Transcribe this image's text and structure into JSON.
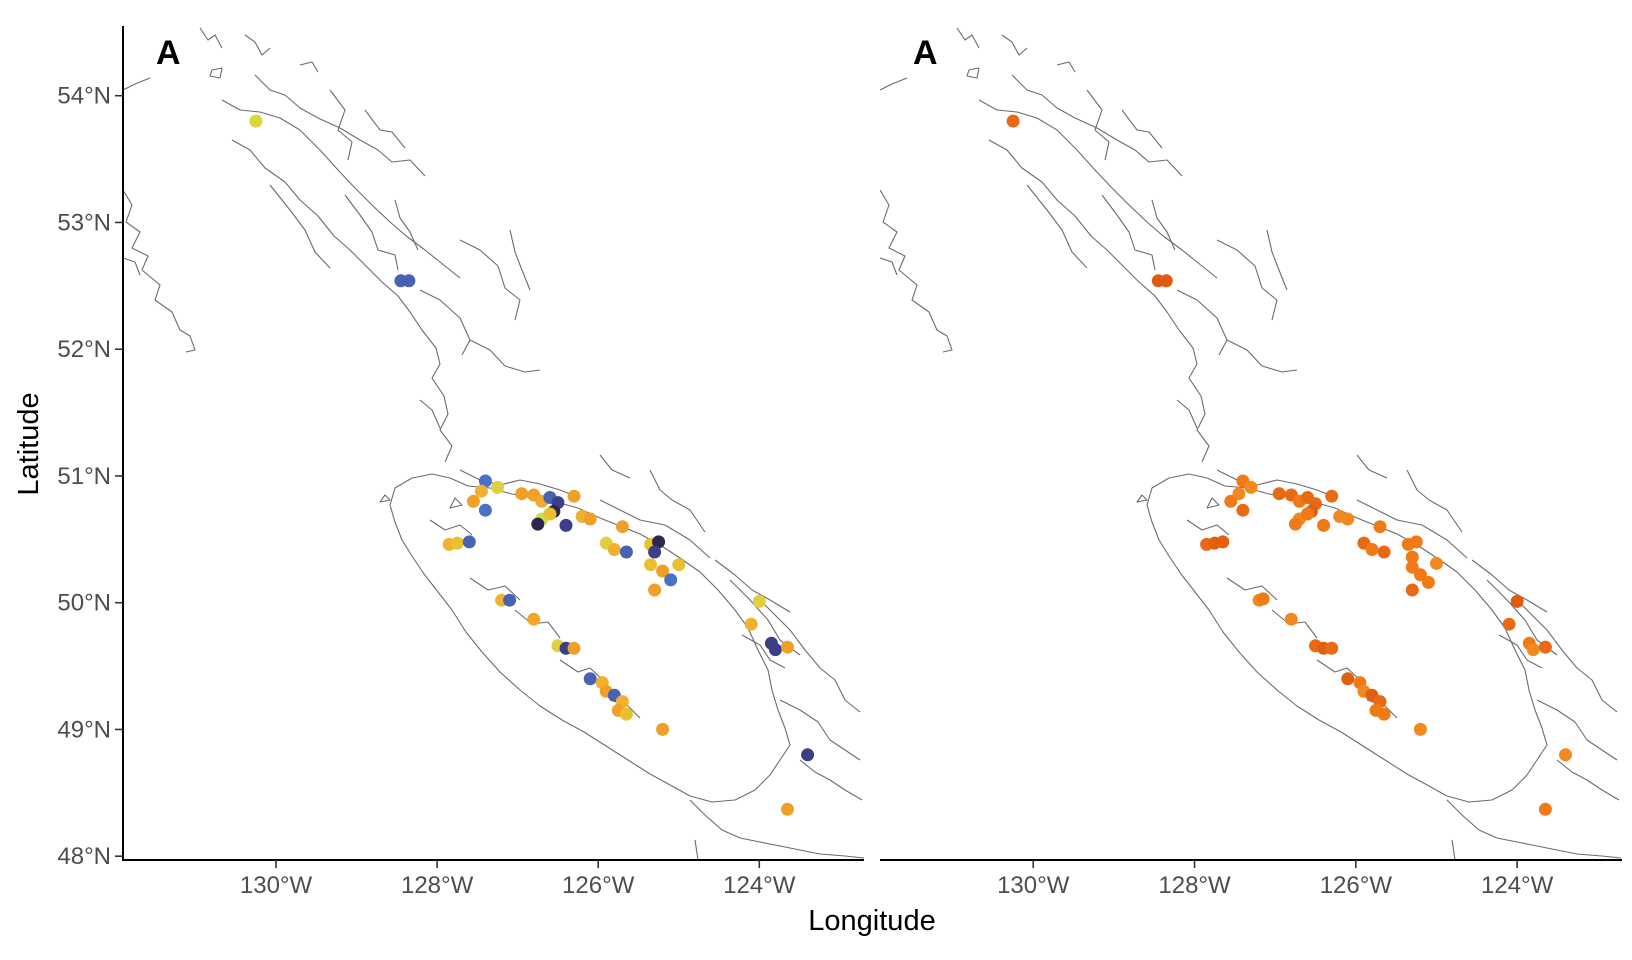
{
  "axes": {
    "xlabel": "Longitude",
    "ylabel": "Latitude",
    "x_ticks": [
      "130°W",
      "128°W",
      "126°W",
      "124°W"
    ],
    "y_ticks": [
      "54°N",
      "53°N",
      "52°N",
      "51°N",
      "50°N",
      "49°N",
      "48°N"
    ]
  },
  "chart_data": [
    {
      "type": "scatter",
      "panel_label": "A",
      "xlim": [
        -131.9,
        -122.7
      ],
      "ylim": [
        47.97,
        54.55
      ],
      "x_ticks": [
        -130,
        -128,
        -126,
        -124
      ],
      "y_ticks": [
        54,
        53,
        52,
        51,
        50,
        49,
        48
      ],
      "points": [
        {
          "lon": -130.25,
          "lat": 53.8,
          "color": "#d8d83a"
        },
        {
          "lon": -128.45,
          "lat": 52.54,
          "color": "#4a63b0"
        },
        {
          "lon": -128.35,
          "lat": 52.54,
          "color": "#4a63b0"
        },
        {
          "lon": -127.4,
          "lat": 50.96,
          "color": "#4a72c4"
        },
        {
          "lon": -127.25,
          "lat": 50.91,
          "color": "#e0d040"
        },
        {
          "lon": -127.45,
          "lat": 50.88,
          "color": "#f0b030"
        },
        {
          "lon": -127.55,
          "lat": 50.8,
          "color": "#f0a028"
        },
        {
          "lon": -127.4,
          "lat": 50.73,
          "color": "#4a72c4"
        },
        {
          "lon": -126.95,
          "lat": 50.86,
          "color": "#f0a028"
        },
        {
          "lon": -126.8,
          "lat": 50.85,
          "color": "#f0a028"
        },
        {
          "lon": -126.7,
          "lat": 50.8,
          "color": "#f0a830"
        },
        {
          "lon": -126.6,
          "lat": 50.83,
          "color": "#4a63b0"
        },
        {
          "lon": -126.5,
          "lat": 50.79,
          "color": "#3a3f88"
        },
        {
          "lon": -126.55,
          "lat": 50.72,
          "color": "#2a2850"
        },
        {
          "lon": -126.7,
          "lat": 50.66,
          "color": "#c8e040"
        },
        {
          "lon": -126.75,
          "lat": 50.62,
          "color": "#2a2850"
        },
        {
          "lon": -126.6,
          "lat": 50.7,
          "color": "#e8c030"
        },
        {
          "lon": -126.3,
          "lat": 50.84,
          "color": "#f0a028"
        },
        {
          "lon": -126.2,
          "lat": 50.68,
          "color": "#f0b030"
        },
        {
          "lon": -126.4,
          "lat": 50.61,
          "color": "#3a3f88"
        },
        {
          "lon": -126.1,
          "lat": 50.66,
          "color": "#f0a028"
        },
        {
          "lon": -127.85,
          "lat": 50.46,
          "color": "#f0b030"
        },
        {
          "lon": -127.75,
          "lat": 50.47,
          "color": "#e8c030"
        },
        {
          "lon": -127.6,
          "lat": 50.48,
          "color": "#4a63b0"
        },
        {
          "lon": -125.7,
          "lat": 50.6,
          "color": "#f0a028"
        },
        {
          "lon": -125.9,
          "lat": 50.47,
          "color": "#e0d040"
        },
        {
          "lon": -125.8,
          "lat": 50.42,
          "color": "#f0b030"
        },
        {
          "lon": -125.65,
          "lat": 50.4,
          "color": "#4a63b0"
        },
        {
          "lon": -125.35,
          "lat": 50.46,
          "color": "#e8c030"
        },
        {
          "lon": -125.25,
          "lat": 50.48,
          "color": "#2a2850"
        },
        {
          "lon": -125.3,
          "lat": 50.4,
          "color": "#3a3f88"
        },
        {
          "lon": -125.35,
          "lat": 50.3,
          "color": "#e8c030"
        },
        {
          "lon": -125.2,
          "lat": 50.25,
          "color": "#f0a028"
        },
        {
          "lon": -125.0,
          "lat": 50.3,
          "color": "#e8c030"
        },
        {
          "lon": -125.1,
          "lat": 50.18,
          "color": "#4a72c4"
        },
        {
          "lon": -125.3,
          "lat": 50.1,
          "color": "#f0a028"
        },
        {
          "lon": -127.2,
          "lat": 50.02,
          "color": "#f0b030"
        },
        {
          "lon": -127.1,
          "lat": 50.02,
          "color": "#4a63b0"
        },
        {
          "lon": -126.8,
          "lat": 49.87,
          "color": "#f0a828"
        },
        {
          "lon": -126.5,
          "lat": 49.66,
          "color": "#e0d040"
        },
        {
          "lon": -126.4,
          "lat": 49.64,
          "color": "#3a3f88"
        },
        {
          "lon": -126.3,
          "lat": 49.64,
          "color": "#f0a028"
        },
        {
          "lon": -126.1,
          "lat": 49.4,
          "color": "#4a63b0"
        },
        {
          "lon": -125.95,
          "lat": 49.37,
          "color": "#f0b030"
        },
        {
          "lon": -125.9,
          "lat": 49.3,
          "color": "#f0a028"
        },
        {
          "lon": -125.8,
          "lat": 49.27,
          "color": "#4a63b0"
        },
        {
          "lon": -125.7,
          "lat": 49.22,
          "color": "#f0b030"
        },
        {
          "lon": -125.75,
          "lat": 49.15,
          "color": "#f0a028"
        },
        {
          "lon": -125.65,
          "lat": 49.12,
          "color": "#e8c030"
        },
        {
          "lon": -125.2,
          "lat": 49.0,
          "color": "#f0a028"
        },
        {
          "lon": -124.0,
          "lat": 50.01,
          "color": "#e0d040"
        },
        {
          "lon": -124.1,
          "lat": 49.83,
          "color": "#f0b030"
        },
        {
          "lon": -123.85,
          "lat": 49.68,
          "color": "#3a3f88"
        },
        {
          "lon": -123.8,
          "lat": 49.63,
          "color": "#3a3f88"
        },
        {
          "lon": -123.65,
          "lat": 49.65,
          "color": "#f0a028"
        },
        {
          "lon": -123.4,
          "lat": 48.8,
          "color": "#3a3f88"
        },
        {
          "lon": -123.65,
          "lat": 48.37,
          "color": "#f0a028"
        }
      ]
    },
    {
      "type": "scatter",
      "panel_label": "A",
      "xlim": [
        -131.9,
        -122.7
      ],
      "ylim": [
        47.97,
        54.55
      ],
      "x_ticks": [
        -130,
        -128,
        -126,
        -124
      ],
      "y_ticks": [
        54,
        53,
        52,
        51,
        50,
        49,
        48
      ],
      "points": [
        {
          "lon": -130.25,
          "lat": 53.8,
          "color": "#e86a14"
        },
        {
          "lon": -128.45,
          "lat": 52.54,
          "color": "#e05a10"
        },
        {
          "lon": -128.35,
          "lat": 52.54,
          "color": "#e05a10"
        },
        {
          "lon": -127.4,
          "lat": 50.96,
          "color": "#f07a18"
        },
        {
          "lon": -127.3,
          "lat": 50.91,
          "color": "#f08a20"
        },
        {
          "lon": -127.45,
          "lat": 50.86,
          "color": "#f08a20"
        },
        {
          "lon": -127.55,
          "lat": 50.8,
          "color": "#f07a18"
        },
        {
          "lon": -127.4,
          "lat": 50.73,
          "color": "#e86a14"
        },
        {
          "lon": -126.95,
          "lat": 50.86,
          "color": "#e86a14"
        },
        {
          "lon": -126.8,
          "lat": 50.85,
          "color": "#e86a14"
        },
        {
          "lon": -126.7,
          "lat": 50.8,
          "color": "#f07a18"
        },
        {
          "lon": -126.6,
          "lat": 50.83,
          "color": "#e86a14"
        },
        {
          "lon": -126.5,
          "lat": 50.78,
          "color": "#e86a14"
        },
        {
          "lon": -126.55,
          "lat": 50.72,
          "color": "#e06010"
        },
        {
          "lon": -126.7,
          "lat": 50.66,
          "color": "#f08a20"
        },
        {
          "lon": -126.75,
          "lat": 50.62,
          "color": "#f07a18"
        },
        {
          "lon": -126.6,
          "lat": 50.7,
          "color": "#f07a18"
        },
        {
          "lon": -126.3,
          "lat": 50.84,
          "color": "#e86a14"
        },
        {
          "lon": -126.2,
          "lat": 50.68,
          "color": "#f08a20"
        },
        {
          "lon": -126.4,
          "lat": 50.61,
          "color": "#f07a18"
        },
        {
          "lon": -126.1,
          "lat": 50.66,
          "color": "#f08a20"
        },
        {
          "lon": -127.85,
          "lat": 50.46,
          "color": "#e86a14"
        },
        {
          "lon": -127.75,
          "lat": 50.47,
          "color": "#e06010"
        },
        {
          "lon": -127.65,
          "lat": 50.48,
          "color": "#e06010"
        },
        {
          "lon": -125.7,
          "lat": 50.6,
          "color": "#f07a18"
        },
        {
          "lon": -125.9,
          "lat": 50.47,
          "color": "#e86a14"
        },
        {
          "lon": -125.8,
          "lat": 50.42,
          "color": "#f07a18"
        },
        {
          "lon": -125.65,
          "lat": 50.4,
          "color": "#e86a14"
        },
        {
          "lon": -125.35,
          "lat": 50.46,
          "color": "#f07a18"
        },
        {
          "lon": -125.25,
          "lat": 50.48,
          "color": "#f07a18"
        },
        {
          "lon": -125.3,
          "lat": 50.36,
          "color": "#f07a18"
        },
        {
          "lon": -125.3,
          "lat": 50.28,
          "color": "#f07a18"
        },
        {
          "lon": -125.2,
          "lat": 50.22,
          "color": "#f07a18"
        },
        {
          "lon": -125.0,
          "lat": 50.31,
          "color": "#f08a20"
        },
        {
          "lon": -125.1,
          "lat": 50.16,
          "color": "#f07a18"
        },
        {
          "lon": -125.3,
          "lat": 50.1,
          "color": "#e86a14"
        },
        {
          "lon": -127.2,
          "lat": 50.02,
          "color": "#f08a20"
        },
        {
          "lon": -127.15,
          "lat": 50.03,
          "color": "#f07a18"
        },
        {
          "lon": -126.8,
          "lat": 49.87,
          "color": "#f08a20"
        },
        {
          "lon": -126.5,
          "lat": 49.66,
          "color": "#e86a14"
        },
        {
          "lon": -126.4,
          "lat": 49.64,
          "color": "#e06010"
        },
        {
          "lon": -126.3,
          "lat": 49.64,
          "color": "#e86a14"
        },
        {
          "lon": -126.1,
          "lat": 49.4,
          "color": "#e06010"
        },
        {
          "lon": -125.95,
          "lat": 49.37,
          "color": "#f07a18"
        },
        {
          "lon": -125.9,
          "lat": 49.3,
          "color": "#f08a20"
        },
        {
          "lon": -125.8,
          "lat": 49.27,
          "color": "#e06010"
        },
        {
          "lon": -125.7,
          "lat": 49.22,
          "color": "#e86a14"
        },
        {
          "lon": -125.75,
          "lat": 49.15,
          "color": "#f07a18"
        },
        {
          "lon": -125.65,
          "lat": 49.12,
          "color": "#f07a18"
        },
        {
          "lon": -125.2,
          "lat": 49.0,
          "color": "#f08a20"
        },
        {
          "lon": -124.0,
          "lat": 50.01,
          "color": "#e05a10"
        },
        {
          "lon": -124.1,
          "lat": 49.83,
          "color": "#e86a14"
        },
        {
          "lon": -123.85,
          "lat": 49.68,
          "color": "#f07a18"
        },
        {
          "lon": -123.8,
          "lat": 49.63,
          "color": "#f08a20"
        },
        {
          "lon": -123.65,
          "lat": 49.65,
          "color": "#e86a14"
        },
        {
          "lon": -123.4,
          "lat": 48.8,
          "color": "#f08a20"
        },
        {
          "lon": -123.65,
          "lat": 48.37,
          "color": "#f07a18"
        }
      ]
    }
  ]
}
